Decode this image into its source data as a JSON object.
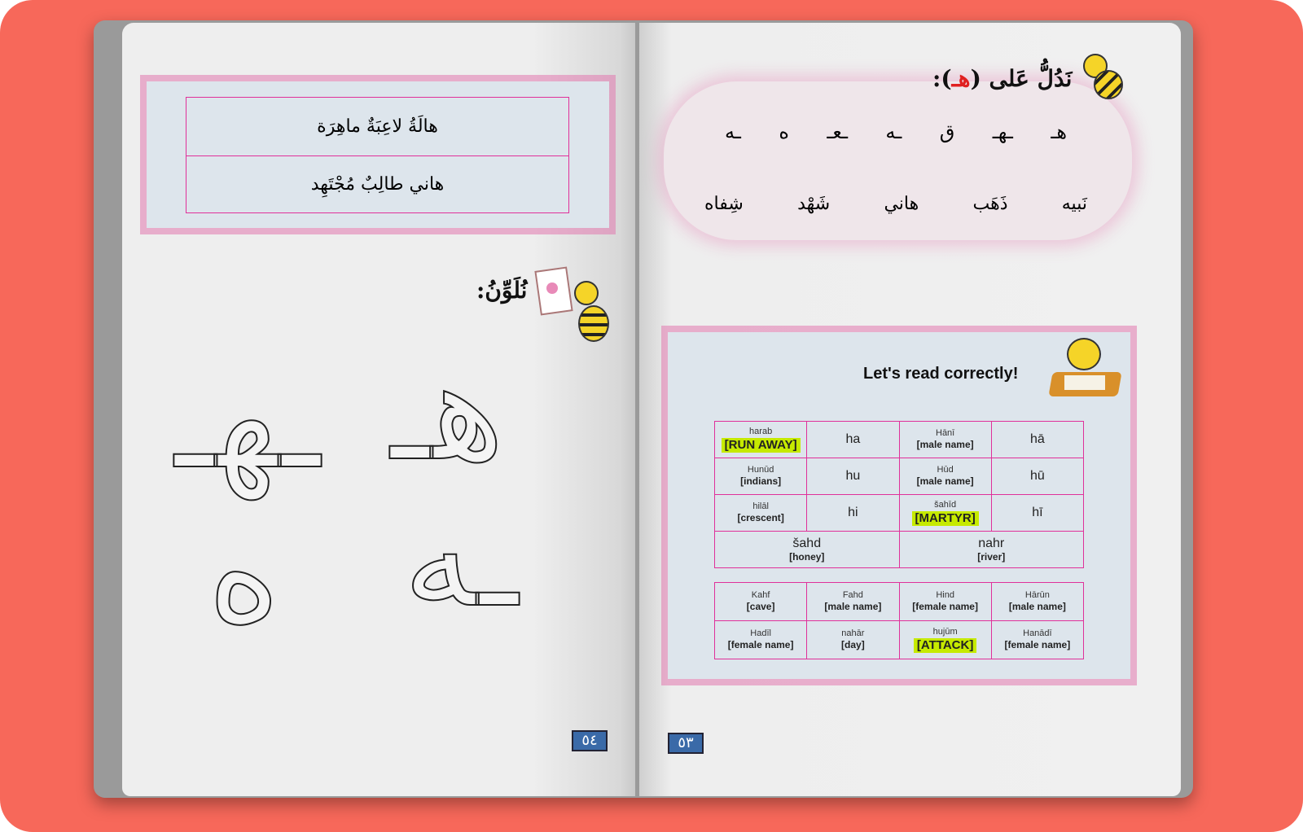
{
  "left_page": {
    "sentences": [
      "هالَةُ لاعِبَةٌ ماهِرَة",
      "هاني طالِبٌ مُجْتَهِد"
    ],
    "coloring_heading": "نُلَوِّنُ:",
    "outline_letters": [
      "هـ",
      "ـهـ",
      "ـه",
      "ه"
    ],
    "page_number": "٥٤"
  },
  "right_page": {
    "heading_prefix": "نَدُلُّ عَلى (",
    "heading_letter": "هـ",
    "heading_suffix": "):",
    "heading_letter_color": "#e02020",
    "letters": [
      "هـ",
      "ـهـ",
      "ق",
      "ـه",
      "ـعـ",
      "ه",
      "ـه"
    ],
    "words": [
      "نَبيه",
      "ذَهَب",
      "هاني",
      "شَهْد",
      "شِفاه"
    ],
    "read_title": "Let's read correctly!",
    "table1": [
      [
        {
          "t": "harab",
          "e": "RUN AWAY",
          "hl": true
        },
        {
          "s": "ha"
        },
        {
          "t": "Hānī",
          "e": "male name"
        },
        {
          "s": "hā"
        }
      ],
      [
        {
          "t": "Hunūd",
          "e": "indians"
        },
        {
          "s": "hu"
        },
        {
          "t": "Hūd",
          "e": "male name"
        },
        {
          "s": "hū"
        }
      ],
      [
        {
          "t": "hilāl",
          "e": "crescent"
        },
        {
          "s": "hi"
        },
        {
          "t": "šahīd",
          "e": "MARTYR",
          "hl": true
        },
        {
          "s": "hī"
        }
      ],
      [
        {
          "t": "šahd",
          "e": "honey",
          "wide": true
        },
        {
          "t": "nahr",
          "e": "river",
          "wide": true
        }
      ]
    ],
    "table2": [
      [
        {
          "t": "Kahf",
          "e": "cave"
        },
        {
          "t": "Fahd",
          "e": "male name"
        },
        {
          "t": "Hind",
          "e": "female name"
        },
        {
          "t": "Hārūn",
          "e": "male name"
        }
      ],
      [
        {
          "t": "Hadīl",
          "e": "female name"
        },
        {
          "t": "nahār",
          "e": "day"
        },
        {
          "t": "hujūm",
          "e": "ATTACK",
          "hl": true
        },
        {
          "t": "Hanādī",
          "e": "female name"
        }
      ]
    ],
    "page_number": "٥٣"
  },
  "colors": {
    "background": "#f7685a",
    "pink_border": "#e0309a",
    "highlight": "#c6ea00",
    "box": "#dde5ec"
  }
}
